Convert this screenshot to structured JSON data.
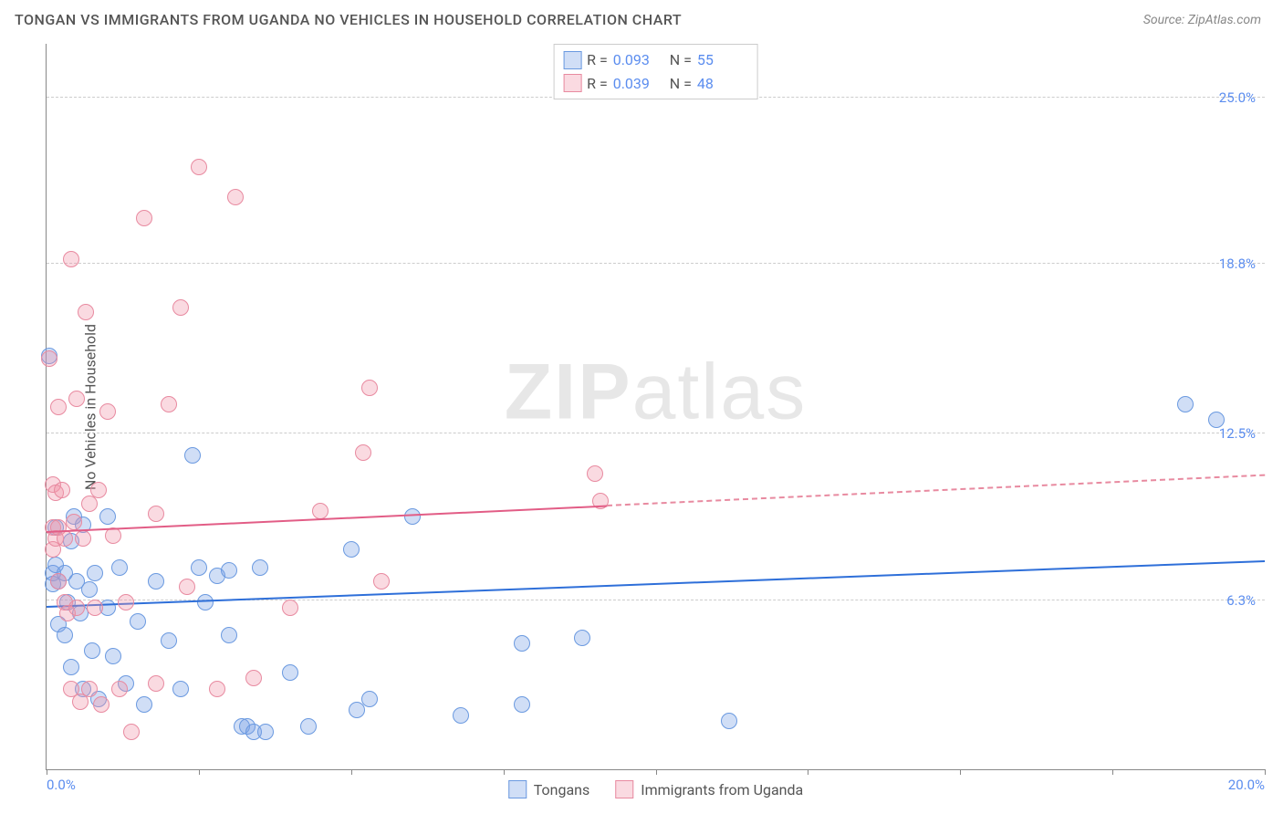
{
  "title": "TONGAN VS IMMIGRANTS FROM UGANDA NO VEHICLES IN HOUSEHOLD CORRELATION CHART",
  "source": "Source: ZipAtlas.com",
  "ylabel": "No Vehicles in Household",
  "watermark_a": "ZIP",
  "watermark_b": "atlas",
  "chart": {
    "type": "scatter",
    "xlim": [
      0,
      20
    ],
    "ylim": [
      0,
      27
    ],
    "xtick_positions": [
      0,
      2.5,
      5,
      7.5,
      10,
      12.5,
      15,
      17.5,
      20
    ],
    "xtick_labels": {
      "0": "0.0%",
      "20": "20.0%"
    },
    "grid_y": [
      6.3,
      12.5,
      18.8,
      25.0
    ],
    "ytick_labels": [
      "6.3%",
      "12.5%",
      "18.8%",
      "25.0%"
    ],
    "grid_color": "#cccccc",
    "background_color": "#ffffff",
    "label_color": "#5b8def",
    "axis_color": "#888888",
    "marker_radius": 9,
    "series": [
      {
        "name": "Tongans",
        "fill": "rgba(120,160,230,0.35)",
        "stroke": "#6a99e0",
        "line_color": "#2e6fd9",
        "R": "0.093",
        "N": "55",
        "trend": {
          "x0": 0,
          "y0": 6.0,
          "x1": 20,
          "y1": 7.7,
          "dash_from_x": null
        },
        "points": [
          [
            0.05,
            15.4
          ],
          [
            0.1,
            7.3
          ],
          [
            0.1,
            6.9
          ],
          [
            0.15,
            9.0
          ],
          [
            0.15,
            7.6
          ],
          [
            0.2,
            7.0
          ],
          [
            0.2,
            5.4
          ],
          [
            0.3,
            7.3
          ],
          [
            0.3,
            5.0
          ],
          [
            0.35,
            6.2
          ],
          [
            0.4,
            8.5
          ],
          [
            0.4,
            3.8
          ],
          [
            0.45,
            9.4
          ],
          [
            0.5,
            7.0
          ],
          [
            0.55,
            5.8
          ],
          [
            0.6,
            9.1
          ],
          [
            0.6,
            3.0
          ],
          [
            0.7,
            6.7
          ],
          [
            0.75,
            4.4
          ],
          [
            0.8,
            7.3
          ],
          [
            0.85,
            2.6
          ],
          [
            1.0,
            9.4
          ],
          [
            1.0,
            6.0
          ],
          [
            1.1,
            4.2
          ],
          [
            1.2,
            7.5
          ],
          [
            1.3,
            3.2
          ],
          [
            1.5,
            5.5
          ],
          [
            1.6,
            2.4
          ],
          [
            1.8,
            7.0
          ],
          [
            2.0,
            4.8
          ],
          [
            2.2,
            3.0
          ],
          [
            2.4,
            11.7
          ],
          [
            2.5,
            7.5
          ],
          [
            2.6,
            6.2
          ],
          [
            2.8,
            7.2
          ],
          [
            3.0,
            7.4
          ],
          [
            3.0,
            5.0
          ],
          [
            3.2,
            1.6
          ],
          [
            3.3,
            1.6
          ],
          [
            3.4,
            1.4
          ],
          [
            3.5,
            7.5
          ],
          [
            3.6,
            1.4
          ],
          [
            4.0,
            3.6
          ],
          [
            4.3,
            1.6
          ],
          [
            5.0,
            8.2
          ],
          [
            5.1,
            2.2
          ],
          [
            5.3,
            2.6
          ],
          [
            6.0,
            9.4
          ],
          [
            6.8,
            2.0
          ],
          [
            7.8,
            4.7
          ],
          [
            7.8,
            2.4
          ],
          [
            8.8,
            4.9
          ],
          [
            11.2,
            1.8
          ],
          [
            18.7,
            13.6
          ],
          [
            19.2,
            13.0
          ]
        ]
      },
      {
        "name": "Immigrants from Uganda",
        "fill": "rgba(240,150,170,0.35)",
        "stroke": "#e88aa0",
        "line_color": "#e25d86",
        "R": "0.039",
        "N": "48",
        "trend": {
          "x0": 0,
          "y0": 8.8,
          "x1": 20,
          "y1": 10.9,
          "dash_from_x": 9.2
        },
        "points": [
          [
            0.05,
            15.3
          ],
          [
            0.1,
            10.6
          ],
          [
            0.1,
            9.0
          ],
          [
            0.1,
            8.2
          ],
          [
            0.15,
            10.3
          ],
          [
            0.15,
            8.6
          ],
          [
            0.2,
            13.5
          ],
          [
            0.2,
            9.0
          ],
          [
            0.2,
            7.0
          ],
          [
            0.25,
            10.4
          ],
          [
            0.3,
            8.6
          ],
          [
            0.3,
            6.2
          ],
          [
            0.35,
            5.8
          ],
          [
            0.4,
            19.0
          ],
          [
            0.4,
            3.0
          ],
          [
            0.45,
            9.2
          ],
          [
            0.5,
            13.8
          ],
          [
            0.5,
            6.0
          ],
          [
            0.55,
            2.5
          ],
          [
            0.6,
            8.6
          ],
          [
            0.65,
            17.0
          ],
          [
            0.7,
            9.9
          ],
          [
            0.7,
            3.0
          ],
          [
            0.8,
            6.0
          ],
          [
            0.85,
            10.4
          ],
          [
            0.9,
            2.4
          ],
          [
            1.0,
            13.3
          ],
          [
            1.1,
            8.7
          ],
          [
            1.2,
            3.0
          ],
          [
            1.3,
            6.2
          ],
          [
            1.4,
            1.4
          ],
          [
            1.6,
            20.5
          ],
          [
            1.8,
            9.5
          ],
          [
            1.8,
            3.2
          ],
          [
            2.0,
            13.6
          ],
          [
            2.2,
            17.2
          ],
          [
            2.3,
            6.8
          ],
          [
            2.5,
            22.4
          ],
          [
            2.8,
            3.0
          ],
          [
            3.1,
            21.3
          ],
          [
            3.4,
            3.4
          ],
          [
            4.0,
            6.0
          ],
          [
            4.5,
            9.6
          ],
          [
            5.2,
            11.8
          ],
          [
            5.3,
            14.2
          ],
          [
            5.5,
            7.0
          ],
          [
            9.0,
            11.0
          ],
          [
            9.1,
            10.0
          ]
        ]
      }
    ]
  },
  "r_legend_labels": {
    "R": "R =",
    "N": "N ="
  }
}
